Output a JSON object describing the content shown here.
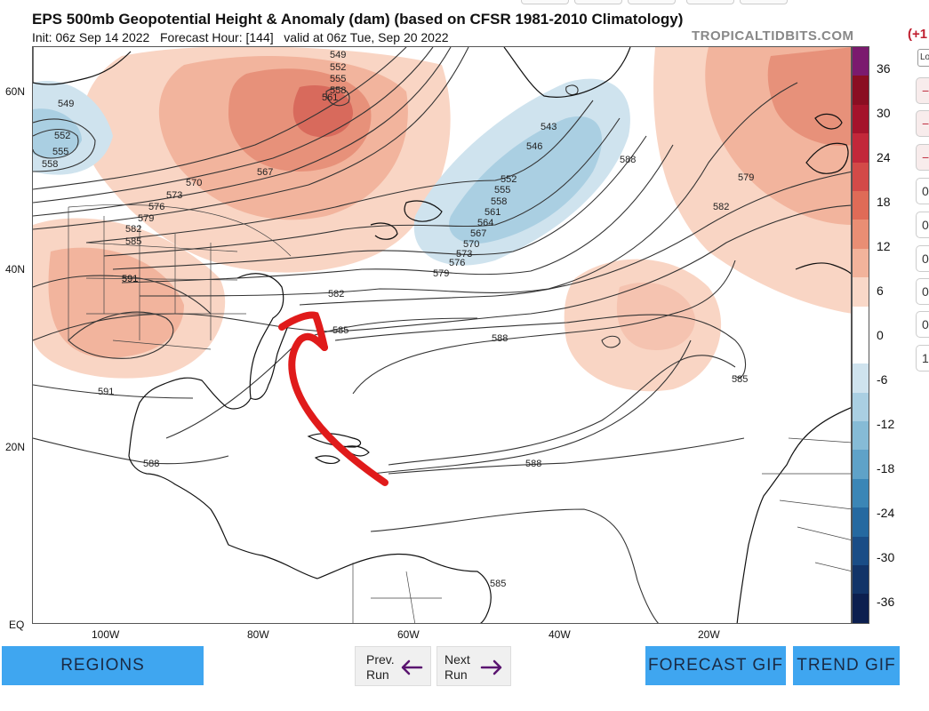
{
  "header": {
    "title": "EPS 500mb Geopotential Height & Anomaly (dam) (based on CFSR 1981-2010 Climatology)",
    "init_label": "Init: 06z Sep 14 2022",
    "forecast_label": "Forecast Hour: [144]",
    "valid_label": "valid at 06z Tue, Sep 20 2022",
    "brand": "TROPICALTIDBITS.COM"
  },
  "map": {
    "lat_labels": [
      "60N",
      "40N",
      "20N",
      "EQ"
    ],
    "lon_labels": [
      "100W",
      "80W",
      "60W",
      "40W",
      "20W"
    ],
    "contour_labels": [
      "549",
      "552",
      "555",
      "558",
      "561",
      "543",
      "546",
      "552",
      "555",
      "558",
      "561",
      "564",
      "567",
      "570",
      "573",
      "576",
      "579",
      "582",
      "585",
      "588",
      "591",
      "570",
      "573",
      "576",
      "579",
      "582",
      "585",
      "591",
      "591",
      "588",
      "588",
      "588",
      "585",
      "585",
      "579",
      "582",
      "567",
      "549",
      "552",
      "555",
      "558"
    ]
  },
  "colorbar": {
    "ticks": [
      "36",
      "30",
      "24",
      "18",
      "12",
      "6",
      "0",
      "-6",
      "-12",
      "-18",
      "-24",
      "-30",
      "-36"
    ],
    "colors": [
      "#7b1a6e",
      "#8a0e22",
      "#a4132b",
      "#c2283a",
      "#d34a48",
      "#df6b57",
      "#e98e74",
      "#f2b39b",
      "#f9d8c8",
      "#ffffff",
      "#ffffff",
      "#cfe3ee",
      "#aacfe2",
      "#86bbd6",
      "#5fa2c8",
      "#3b86b6",
      "#2569a0",
      "#1a4d86",
      "#123468",
      "#0c1f4f"
    ]
  },
  "buttons": {
    "regions": "REGIONS",
    "prev_line1": "Prev.",
    "prev_line2": "Run",
    "next_line1": "Next",
    "next_line2": "Run",
    "forecast_gif": "FORECAST GIF",
    "trend_gif": "TREND GIF"
  },
  "sidebar": {
    "offset_label": "(+1",
    "select_value": "Lo",
    "items": [
      "−",
      "−",
      "−",
      "0",
      "0",
      "0",
      "0",
      "0",
      "1"
    ]
  }
}
